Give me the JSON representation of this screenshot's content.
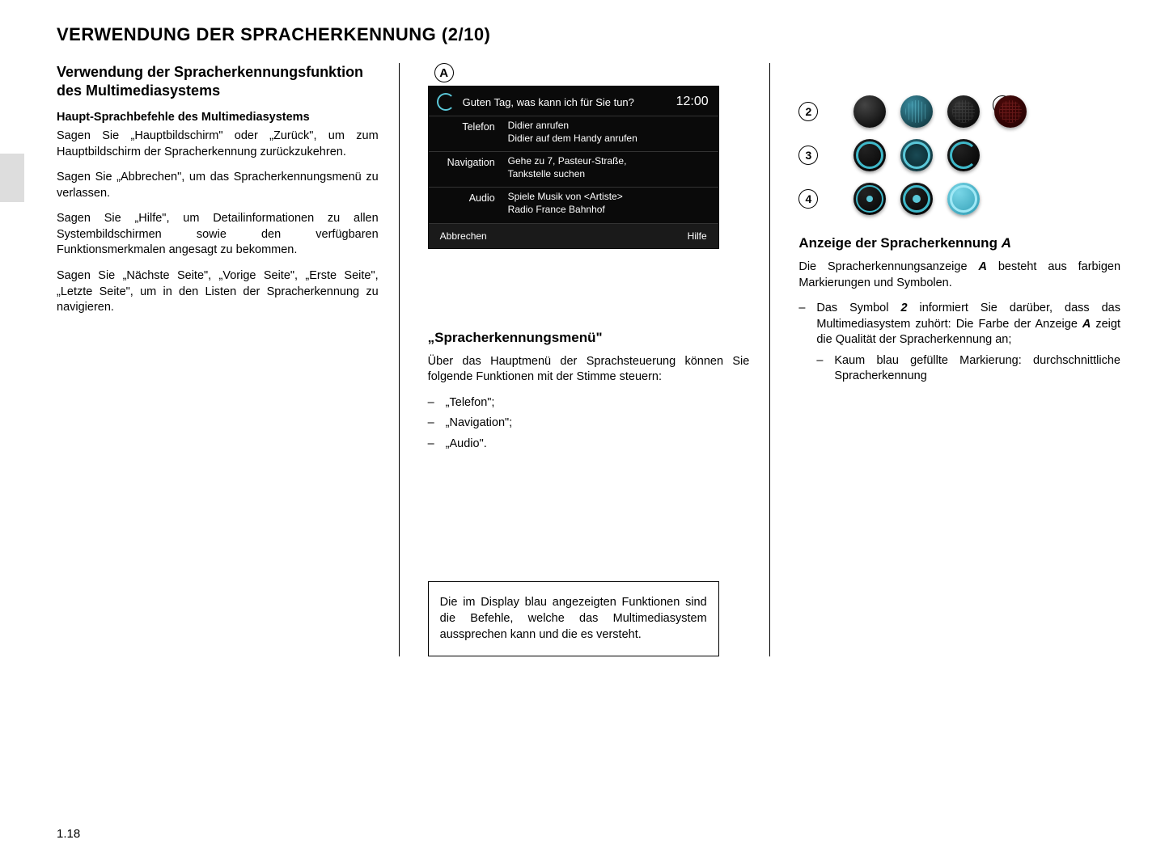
{
  "page": {
    "title": "VERWENDUNG DER SPRACHERKENNUNG (2/10)",
    "number": "1.18"
  },
  "col1": {
    "h2": "Verwendung der Spracherkennungsfunktion des Multimediasystems",
    "h3": "Haupt-Sprachbefehle des Multimediasystems",
    "p1": "Sagen Sie „Hauptbildschirm\" oder „Zurück\", um zum Hauptbildschirm der Spracherkennung zurückzukehren.",
    "p2": "Sagen Sie „Abbrechen\", um das Spracherkennungsmenü zu verlassen.",
    "p3": "Sagen Sie „Hilfe\", um Detailinformationen zu allen Systembildschirmen sowie den verfügbaren Funktionsmerkmalen angesagt zu bekommen.",
    "p4": "Sagen Sie „Nächste Seite\", „Vorige Seite\", „Erste Seite\", „Letzte Seite\", um in den Listen der Spracherkennung zu navigieren."
  },
  "screen": {
    "label": "A",
    "prompt": "Guten Tag, was kann ich für Sie tun?",
    "time": "12:00",
    "rows": [
      {
        "cat": "Telefon",
        "l1": "Didier anrufen",
        "l2": "Didier auf dem Handy anrufen"
      },
      {
        "cat": "Navigation",
        "l1": "Gehe zu 7, Pasteur-Straße,",
        "l2": "Tankstelle suchen"
      },
      {
        "cat": "Audio",
        "l1": "Spiele Musik von <Artiste>",
        "l2": "Radio France Bahnhof"
      }
    ],
    "cancel": "Abbrechen",
    "help": "Hilfe",
    "colors": {
      "bg": "#0a0a0a",
      "text": "#ffffff",
      "accent": "#5ac7d8",
      "divider": "#333333"
    }
  },
  "col2": {
    "h2": "„Spracherkennungsmenü\"",
    "p1": "Über das Hauptmenü der Sprachsteuerung können Sie folgende Funktionen mit der Stimme steuern:",
    "items": [
      "„Telefon\";",
      "„Navigation\";",
      "„Audio\"."
    ],
    "infobox": "Die im Display blau angezeigten Funktionen sind die Befehle, welche das Multimediasystem aussprechen kann und die es versteht."
  },
  "indicator": {
    "label_a": "A",
    "rows": [
      {
        "n": "2",
        "orbs": [
          "orb-black",
          "orb-blue-grid",
          "orb-dark-grid",
          "orb-red-grid"
        ]
      },
      {
        "n": "3",
        "orbs": [
          "orb-ring",
          "orb-ring-fill",
          "orb-ring-half"
        ]
      },
      {
        "n": "4",
        "orbs": [
          "orb-dot",
          "orb-dot-ring",
          "orb-full"
        ]
      }
    ],
    "colors": {
      "accent_blue": "#5ac7d8",
      "red_fill": "#c04040"
    }
  },
  "col3": {
    "h2_prefix": "Anzeige der Spracherkennung ",
    "h2_em": "A",
    "p1_a": "Die Spracherkennungsanzeige ",
    "p1_em": "A",
    "p1_b": " besteht aus farbigen Markierungen und Symbolen.",
    "li1_a": "Das Symbol ",
    "li1_em": "2",
    "li1_b": " informiert Sie darüber, dass das Multimediasystem zuhört: Die Farbe der Anzeige ",
    "li1_em2": "A",
    "li1_c": " zeigt die Qualität der Spracherkennung an;",
    "li2": "Kaum blau gefüllte Markierung: durchschnittliche Spracherkennung"
  }
}
